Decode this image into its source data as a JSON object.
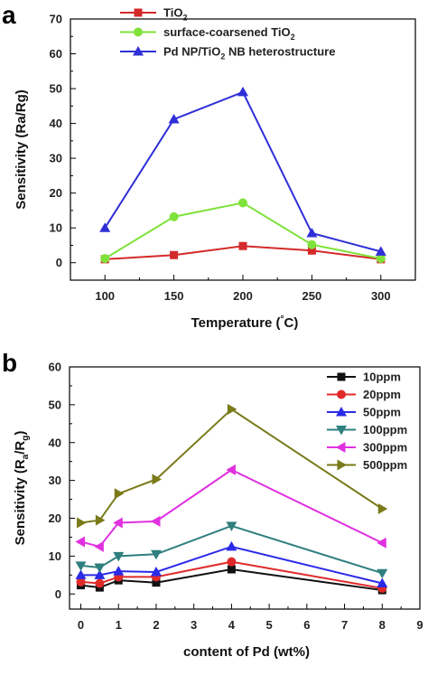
{
  "chart_data": [
    {
      "panel_label": "a",
      "type": "line",
      "xlabel": "Temperature (°C)",
      "ylabel": "Sensitivity (Ra/Rg)",
      "x": [
        100,
        150,
        200,
        250,
        300
      ],
      "xlim": [
        75,
        325
      ],
      "ylim": [
        -5,
        70
      ],
      "xticks": [
        100,
        150,
        200,
        250,
        300
      ],
      "yticks": [
        0,
        10,
        20,
        30,
        40,
        50,
        60,
        70
      ],
      "grid": false,
      "legend_position": "top-left",
      "series": [
        {
          "name": "TiO2",
          "name_main": "TiO",
          "name_sub": "2",
          "name_tail": "",
          "color": "#d42a2a",
          "marker": "square",
          "values": [
            1.0,
            2.2,
            4.8,
            3.5,
            1.0
          ]
        },
        {
          "name": "surface-coarsened TiO2",
          "name_main": "surface-coarsened TiO",
          "name_sub": "2",
          "name_tail": "",
          "color": "#7fe23a",
          "marker": "circle",
          "values": [
            1.2,
            13.2,
            17.2,
            5.2,
            1.2
          ]
        },
        {
          "name": "Pd NP/TiO2 NB heterostructure",
          "name_main": "Pd NP/TiO",
          "name_sub": "2",
          "name_tail": " NB heterostructure",
          "color": "#2f2fd8",
          "marker": "triangle-up",
          "values": [
            10.0,
            41.2,
            49.0,
            8.5,
            3.2
          ]
        }
      ]
    },
    {
      "panel_label": "b",
      "type": "line",
      "xlabel": "content of Pd (wt%)",
      "ylabel": "Sensitivity (Ra/Rg)",
      "x": [
        0,
        0.5,
        1,
        2,
        4,
        8
      ],
      "xlim": [
        -0.3,
        9
      ],
      "ylim": [
        -4,
        60
      ],
      "xticks": [
        0,
        1,
        2,
        3,
        4,
        5,
        6,
        7,
        8,
        9
      ],
      "yticks": [
        0,
        10,
        20,
        30,
        40,
        50,
        60
      ],
      "grid": false,
      "legend_position": "top-right",
      "series": [
        {
          "name": "10ppm",
          "color": "#111111",
          "marker": "square",
          "values": [
            2.3,
            1.7,
            3.6,
            3.0,
            6.5,
            1.0
          ]
        },
        {
          "name": "20ppm",
          "color": "#e02a2a",
          "marker": "circle",
          "values": [
            3.2,
            2.8,
            4.5,
            4.5,
            8.5,
            1.5
          ]
        },
        {
          "name": "50ppm",
          "color": "#2a2ae8",
          "marker": "triangle-up",
          "values": [
            5.0,
            5.0,
            6.0,
            5.8,
            12.5,
            2.8
          ]
        },
        {
          "name": "100ppm",
          "color": "#2f7f7f",
          "marker": "triangle-down",
          "values": [
            7.5,
            7.0,
            10.0,
            10.5,
            18.0,
            5.5
          ]
        },
        {
          "name": "300ppm",
          "color": "#e030e0",
          "marker": "triangle-left",
          "values": [
            13.8,
            12.5,
            18.8,
            19.2,
            32.8,
            13.5
          ]
        },
        {
          "name": "500ppm",
          "color": "#7a7a1a",
          "marker": "triangle-right",
          "values": [
            18.8,
            19.5,
            26.5,
            30.3,
            48.8,
            22.5
          ]
        }
      ]
    }
  ]
}
